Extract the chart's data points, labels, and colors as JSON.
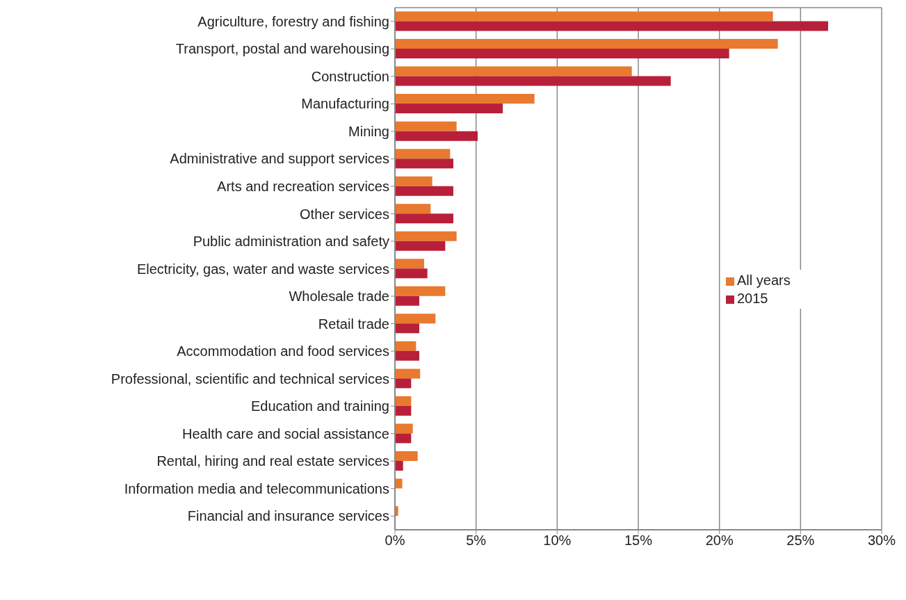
{
  "chart_data": {
    "type": "bar",
    "orientation": "horizontal",
    "categories": [
      "Agriculture, forestry and fishing",
      "Transport, postal and warehousing",
      "Construction",
      "Manufacturing",
      "Mining",
      "Administrative and support services",
      "Arts and recreation services",
      "Other services",
      "Public administration and safety",
      "Electricity, gas, water and waste services",
      "Wholesale trade",
      "Retail trade",
      "Accommodation and food services",
      "Professional, scientific and technical services",
      "Education and training",
      "Health care and social assistance",
      "Rental, hiring and real estate services",
      "Information media and telecommunications",
      "Financial and insurance services"
    ],
    "series": [
      {
        "name": "All years",
        "color": "#e8792f",
        "values": [
          23.3,
          23.6,
          14.6,
          8.6,
          3.8,
          3.4,
          2.3,
          2.2,
          3.8,
          1.8,
          3.1,
          2.5,
          1.3,
          1.55,
          1.0,
          1.1,
          1.4,
          0.45,
          0.2
        ]
      },
      {
        "name": "2015",
        "color": "#b8203a",
        "values": [
          26.7,
          20.6,
          17.0,
          6.65,
          5.1,
          3.6,
          3.6,
          3.6,
          3.1,
          2.0,
          1.5,
          1.5,
          1.5,
          1.0,
          1.0,
          1.0,
          0.5,
          0,
          0
        ]
      }
    ],
    "xlim": [
      0,
      30
    ],
    "xticks": [
      {
        "value": 0,
        "label": "0%"
      },
      {
        "value": 5,
        "label": "5%"
      },
      {
        "value": 10,
        "label": "10%"
      },
      {
        "value": 15,
        "label": "15%"
      },
      {
        "value": 20,
        "label": "20%"
      },
      {
        "value": 25,
        "label": "25%"
      },
      {
        "value": 30,
        "label": "30%"
      }
    ],
    "grid": "x",
    "legend": "right"
  }
}
